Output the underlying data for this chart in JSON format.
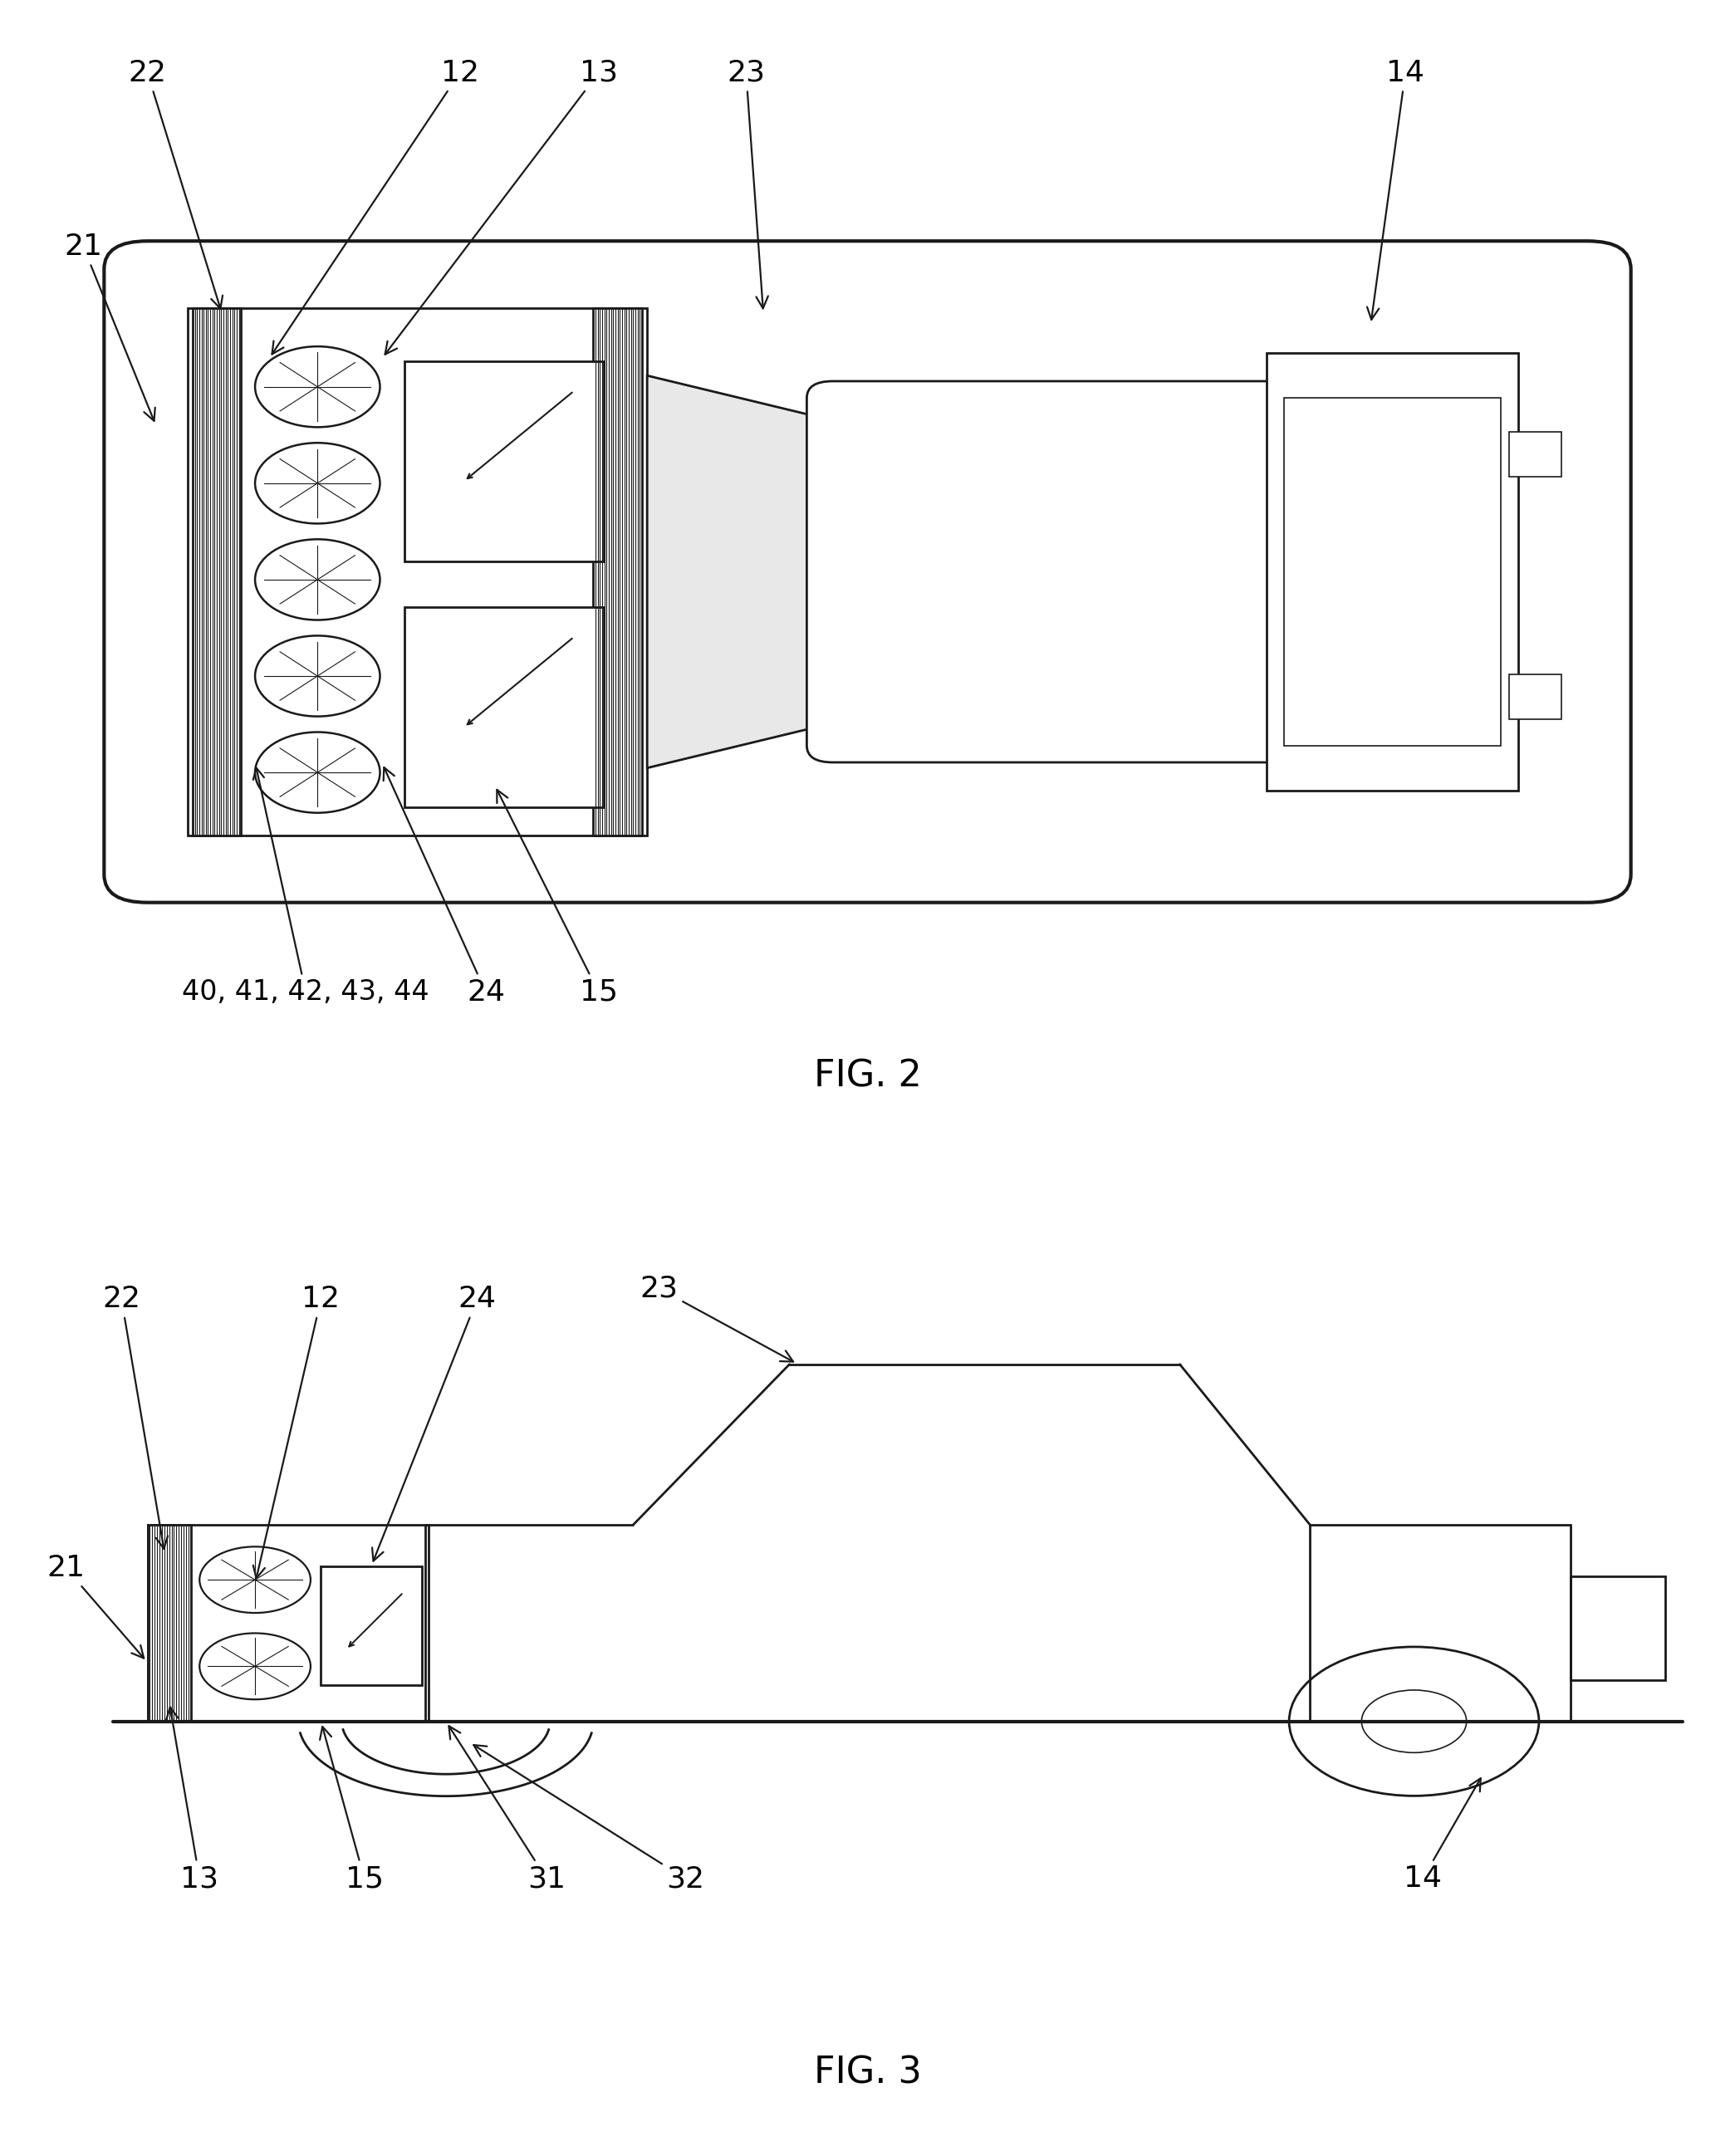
{
  "fig2_label": "FIG. 2",
  "fig3_label": "FIG. 3",
  "background_color": "#ffffff",
  "line_color": "#1a1a1a",
  "lw_outer": 3.0,
  "lw_inner": 2.0,
  "lw_thin": 1.2,
  "font_size_label": 26,
  "font_size_fig": 32
}
